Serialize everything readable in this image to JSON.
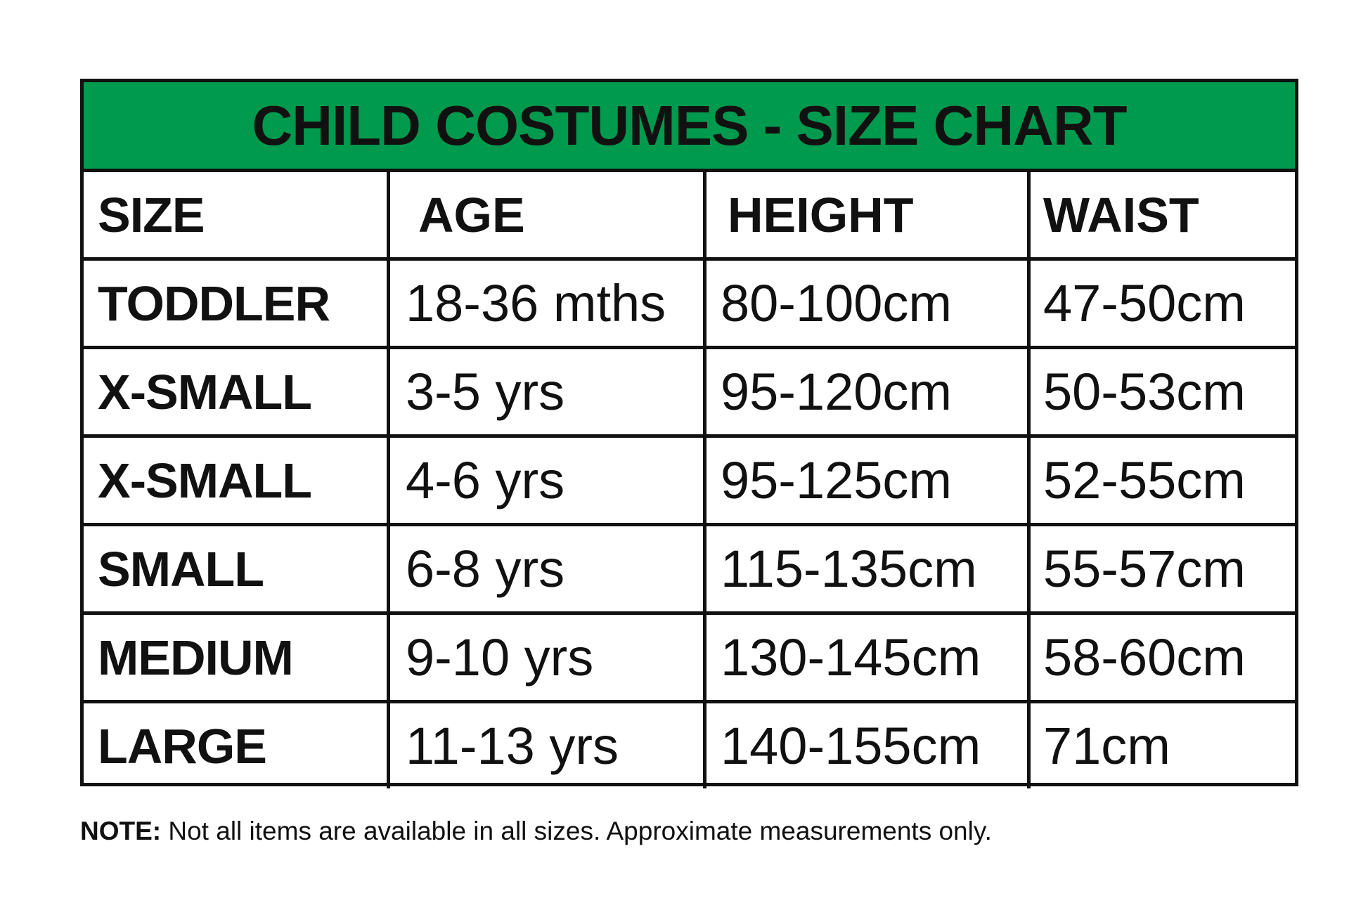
{
  "title": "CHILD COSTUMES - SIZE CHART",
  "colors": {
    "header_bg": "#009a4e",
    "border": "#111111"
  },
  "columns": [
    "SIZE",
    "AGE",
    "HEIGHT",
    "WAIST"
  ],
  "rows": [
    [
      "TODDLER",
      "18-36 mths",
      "80-100cm",
      "47-50cm"
    ],
    [
      "X-SMALL",
      "3-5 yrs",
      "95-120cm",
      "50-53cm"
    ],
    [
      "X-SMALL",
      "4-6 yrs",
      "95-125cm",
      "52-55cm"
    ],
    [
      "SMALL",
      "6-8 yrs",
      "115-135cm",
      "55-57cm"
    ],
    [
      "MEDIUM",
      "9-10 yrs",
      "130-145cm",
      "58-60cm"
    ],
    [
      "LARGE",
      "11-13 yrs",
      "140-155cm",
      "71cm"
    ]
  ],
  "note": {
    "label": "NOTE:",
    "text": " Not all items are available in all sizes. Approximate measurements only."
  }
}
